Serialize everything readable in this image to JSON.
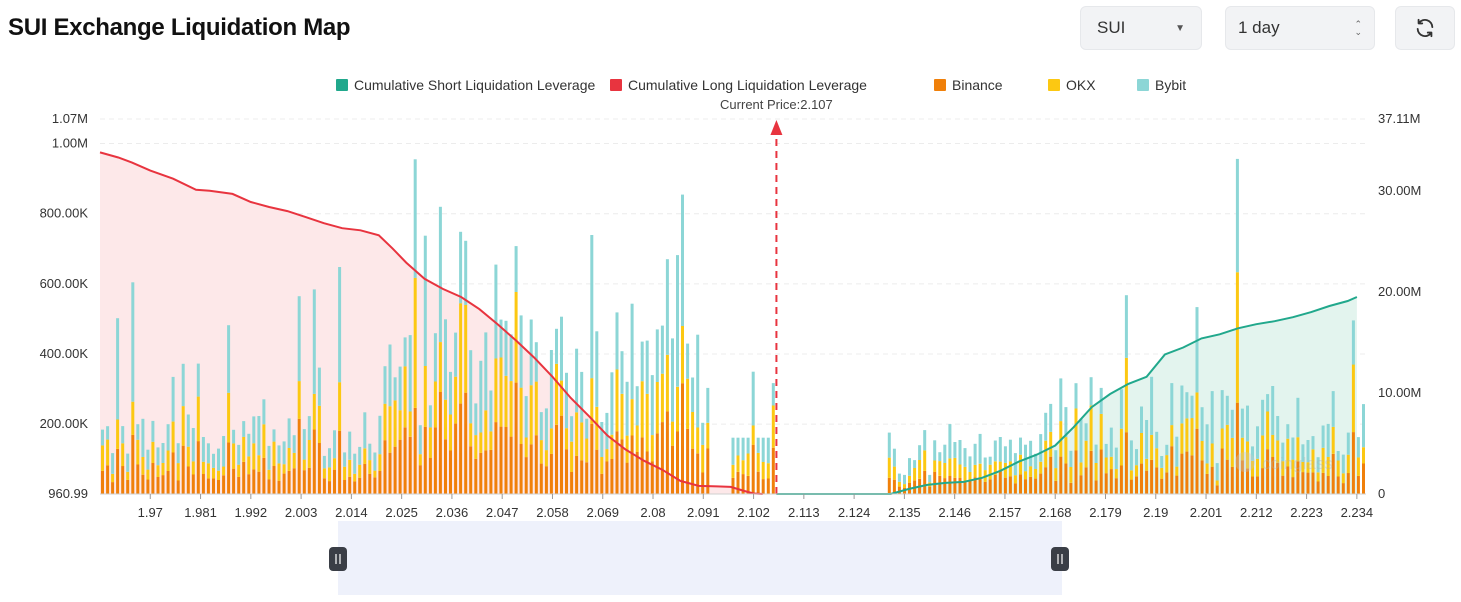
{
  "header": {
    "title": "SUI Exchange Liquidation Map",
    "symbol_value": "SUI",
    "period_value": "1 day"
  },
  "colors": {
    "short_cum": "#21a88c",
    "long_cum": "#e8343f",
    "binance": "#f0800a",
    "okx": "#fcc812",
    "bybit": "#8cd6d6",
    "long_fill": "#fde8e9",
    "short_fill": "#e3f4ee"
  },
  "icons": {
    "refresh": "refresh-icon",
    "dropdown": "chevron-down-icon",
    "stepper": "stepper-icon"
  },
  "chart_data": {
    "type": "bar",
    "title": "",
    "current_price_label": "Current Price:2.107",
    "current_price": 2.107,
    "legend": [
      {
        "name": "Cumulative Short Liquidation Leverage",
        "color": "#21a88c"
      },
      {
        "name": "Cumulative Long Liquidation Leverage",
        "color": "#e8343f"
      },
      {
        "name": "Binance",
        "color": "#f0800a"
      },
      {
        "name": "OKX",
        "color": "#fcc812"
      },
      {
        "name": "Bybit",
        "color": "#8cd6d6"
      }
    ],
    "x_ticks": [
      "1.97",
      "1.981",
      "1.992",
      "2.003",
      "2.014",
      "2.025",
      "2.036",
      "2.047",
      "2.058",
      "2.069",
      "2.08",
      "2.091",
      "2.102",
      "2.113",
      "2.124",
      "2.135",
      "2.146",
      "2.157",
      "2.168",
      "2.179",
      "2.19",
      "2.201",
      "2.212",
      "2.223",
      "2.234"
    ],
    "x_range": [
      1.959,
      2.236
    ],
    "y_left_ticks": [
      "1.07M",
      "1.00M",
      "800.00K",
      "600.00K",
      "400.00K",
      "200.00K",
      "960.99"
    ],
    "y_left_values": [
      1070000,
      1000000,
      800000,
      600000,
      400000,
      200000,
      960.99
    ],
    "y_left_range": [
      960.99,
      1070000
    ],
    "y_right_ticks": [
      "37.11M",
      "30.00M",
      "20.00M",
      "10.00M",
      "0"
    ],
    "y_right_values": [
      37110000,
      30000000,
      20000000,
      10000000,
      0
    ],
    "y_right_range": [
      0,
      37110000
    ],
    "long_cumulative": {
      "name": "Cumulative Long Liquidation Leverage",
      "x": [
        1.959,
        1.963,
        1.966,
        1.97,
        1.975,
        1.98,
        1.983,
        1.988,
        1.992,
        1.996,
        2.0,
        2.004,
        2.008,
        2.012,
        2.016,
        2.02,
        2.023,
        2.026,
        2.03,
        2.034,
        2.038,
        2.042,
        2.046,
        2.05,
        2.054,
        2.058,
        2.062,
        2.066,
        2.07,
        2.074,
        2.078,
        2.082,
        2.086,
        2.09,
        2.094,
        2.097,
        2.1,
        2.102,
        2.104
      ],
      "y": [
        33800000,
        33300000,
        32800000,
        32000000,
        31200000,
        30100000,
        30000000,
        29700000,
        28900000,
        28400000,
        28000000,
        27400000,
        26800000,
        26300000,
        26100000,
        25600000,
        24300000,
        22900000,
        21300000,
        20300000,
        19500000,
        18300000,
        16800000,
        15200000,
        13500000,
        11600000,
        9500000,
        7700000,
        5800000,
        4400000,
        3300000,
        2400000,
        1300000,
        800000,
        750000,
        700000,
        300000,
        50000,
        0
      ]
    },
    "short_cumulative": {
      "name": "Cumulative Short Liquidation Leverage",
      "x": [
        2.107,
        2.132,
        2.136,
        2.14,
        2.144,
        2.148,
        2.152,
        2.156,
        2.16,
        2.164,
        2.168,
        2.172,
        2.176,
        2.18,
        2.184,
        2.188,
        2.192,
        2.196,
        2.2,
        2.204,
        2.208,
        2.212,
        2.216,
        2.22,
        2.224,
        2.228,
        2.232,
        2.234
      ],
      "y": [
        0,
        0,
        500000,
        900000,
        1100000,
        1200000,
        1600000,
        2300000,
        3200000,
        3900000,
        4800000,
        6600000,
        8600000,
        9900000,
        10900000,
        11600000,
        13800000,
        14500000,
        15400000,
        15800000,
        16400000,
        16800000,
        17100000,
        17500000,
        18000000,
        18600000,
        19100000,
        19500000
      ]
    }
  },
  "zoom": {
    "start_fraction": 0.0,
    "end_fraction": 0.57
  }
}
